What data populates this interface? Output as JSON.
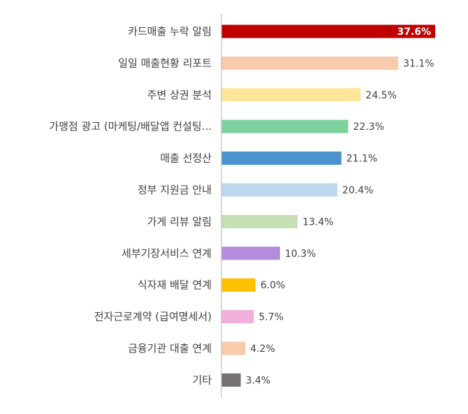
{
  "chart_data": {
    "type": "bar",
    "orientation": "horizontal",
    "title": "",
    "xlabel": "",
    "ylabel": "",
    "value_suffix": "%",
    "xlim": [
      0,
      40
    ],
    "grid": false,
    "legend": "none",
    "categories": [
      "카드매출 누락 알림",
      "일일 매출현황 리포트",
      "주변 상권 분석",
      "가맹점 광고 (마케팅/배달앱 컨설팅...",
      "매출 선정산",
      "정부 지원금 안내",
      "가게 리뷰 알림",
      "세부기장서비스 연계",
      "식자재 배달 연계",
      "전자근로계약 (급여명세서)",
      "금융기관 대출 연계",
      "기타"
    ],
    "values": [
      37.6,
      31.1,
      24.5,
      22.3,
      21.1,
      20.4,
      13.4,
      10.3,
      6.0,
      5.7,
      4.2,
      3.4
    ],
    "value_labels": [
      "37.6%",
      "31.1%",
      "24.5%",
      "22.3%",
      "21.1%",
      "20.4%",
      "13.4%",
      "10.3%",
      "6.0%",
      "5.7%",
      "4.2%",
      "3.4%"
    ],
    "colors": [
      "#C00000",
      "#F8CBAD",
      "#FFE699",
      "#7FD29E",
      "#4A93CC",
      "#BDD7EE",
      "#C5E0B4",
      "#B48CDC",
      "#FFC000",
      "#F0B0DA",
      "#F8CBAD",
      "#767171"
    ],
    "label_inside": [
      true,
      false,
      false,
      false,
      false,
      false,
      false,
      false,
      false,
      false,
      false,
      false
    ],
    "label_inside_color": "#ffffff",
    "label_color": "#404040",
    "axis_color": "#BFBFBF"
  }
}
